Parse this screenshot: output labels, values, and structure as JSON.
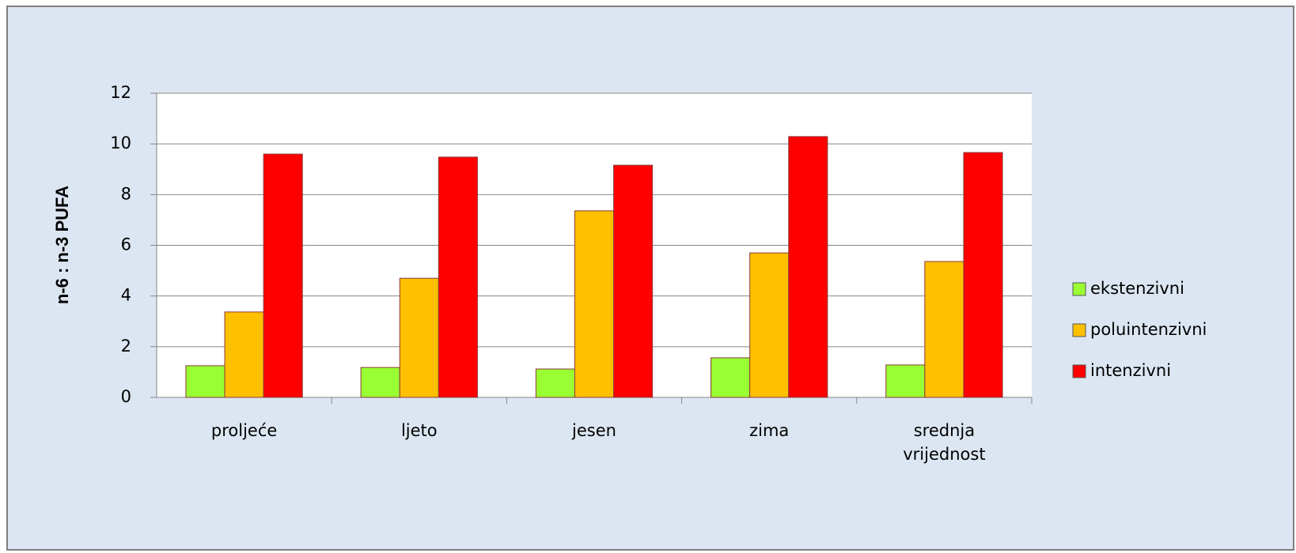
{
  "chart_data": {
    "type": "bar",
    "y_label": "n-6 : n-3 PUFA",
    "categories": [
      "proljeće",
      "ljeto",
      "jesen",
      "zima",
      "srednja vrijednost"
    ],
    "series": [
      {
        "name": "ekstenzivni",
        "color": "#99ff33",
        "values": [
          1.25,
          1.18,
          1.12,
          1.56,
          1.28
        ]
      },
      {
        "name": "poluintenzivni",
        "color": "#ffc000",
        "values": [
          3.37,
          4.7,
          7.36,
          5.7,
          5.36
        ]
      },
      {
        "name": "intenzivni",
        "color": "#ff0000",
        "values": [
          9.6,
          9.48,
          9.16,
          10.29,
          9.66
        ]
      }
    ],
    "ylim": [
      0,
      12
    ],
    "yticks": [
      0,
      2,
      4,
      6,
      8,
      10,
      12
    ],
    "grid": true,
    "legend": "right"
  }
}
